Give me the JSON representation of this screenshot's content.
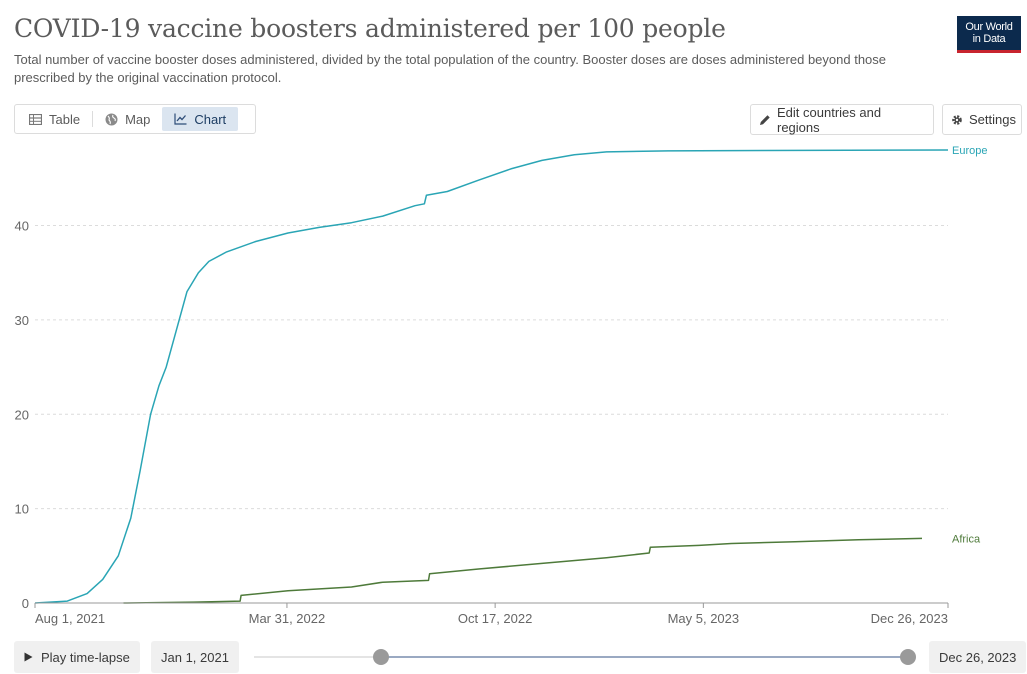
{
  "header": {
    "title": "COVID-19 vaccine boosters administered per 100 people",
    "subtitle": "Total number of vaccine booster doses administered, divided by the total population of the country. Booster doses are doses administered beyond those prescribed by the original vaccination protocol.",
    "logo_line1": "Our World",
    "logo_line2": "in Data"
  },
  "tabs": [
    {
      "label": "Table",
      "icon": "table-icon"
    },
    {
      "label": "Map",
      "icon": "globe-icon"
    },
    {
      "label": "Chart",
      "icon": "line-chart-icon",
      "active": true
    }
  ],
  "toolbar": {
    "edit_label": "Edit countries and regions",
    "settings_label": "Settings"
  },
  "timeline": {
    "play_label": "Play time-lapse",
    "start_label": "Jan 1, 2021",
    "end_label": "Dec 26, 2023"
  },
  "colors": {
    "europe": "#2aa5b5",
    "africa": "#4e7a3a",
    "grid": "#dcdcdc",
    "tick_text": "#666666"
  },
  "chart_data": {
    "type": "line",
    "title": "COVID-19 vaccine boosters administered per 100 people",
    "xlabel": "",
    "ylabel": "",
    "x_range": [
      "2021-08-01",
      "2023-12-26"
    ],
    "ylim": [
      0,
      48
    ],
    "y_ticks": [
      0,
      10,
      20,
      30,
      40
    ],
    "x_ticks": [
      {
        "date": "2021-08-01",
        "label": "Aug 1, 2021"
      },
      {
        "date": "2022-03-31",
        "label": "Mar 31, 2022"
      },
      {
        "date": "2022-10-17",
        "label": "Oct 17, 2022"
      },
      {
        "date": "2023-05-05",
        "label": "May 5, 2023"
      },
      {
        "date": "2023-12-26",
        "label": "Dec 26, 2023"
      }
    ],
    "grid": "horizontal dashed",
    "legend": "labels at line ends (right)",
    "series": [
      {
        "name": "Europe",
        "color": "#2aa5b5",
        "points": [
          [
            "2021-08-01",
            0
          ],
          [
            "2021-09-01",
            0.2
          ],
          [
            "2021-09-20",
            1
          ],
          [
            "2021-10-05",
            2.5
          ],
          [
            "2021-10-20",
            5
          ],
          [
            "2021-11-01",
            9
          ],
          [
            "2021-11-10",
            14
          ],
          [
            "2021-11-20",
            20
          ],
          [
            "2021-11-28",
            23
          ],
          [
            "2021-12-05",
            25
          ],
          [
            "2021-12-15",
            29
          ],
          [
            "2021-12-25",
            33
          ],
          [
            "2022-01-05",
            35
          ],
          [
            "2022-01-15",
            36.2
          ],
          [
            "2022-02-01",
            37.2
          ],
          [
            "2022-03-01",
            38.3
          ],
          [
            "2022-04-01",
            39.2
          ],
          [
            "2022-05-01",
            39.8
          ],
          [
            "2022-06-01",
            40.3
          ],
          [
            "2022-07-01",
            41
          ],
          [
            "2022-08-01",
            42.1
          ],
          [
            "2022-08-10",
            42.3
          ],
          [
            "2022-08-12",
            43.2
          ],
          [
            "2022-09-01",
            43.6
          ],
          [
            "2022-10-01",
            44.8
          ],
          [
            "2022-11-01",
            46
          ],
          [
            "2022-12-01",
            46.9
          ],
          [
            "2023-01-01",
            47.5
          ],
          [
            "2023-02-01",
            47.8
          ],
          [
            "2023-04-01",
            47.9
          ],
          [
            "2023-07-01",
            47.95
          ],
          [
            "2023-12-26",
            48.0
          ]
        ]
      },
      {
        "name": "Africa",
        "color": "#4e7a3a",
        "points": [
          [
            "2021-10-25",
            0
          ],
          [
            "2022-01-01",
            0.1
          ],
          [
            "2022-02-14",
            0.2
          ],
          [
            "2022-02-15",
            0.8
          ],
          [
            "2022-04-01",
            1.3
          ],
          [
            "2022-06-01",
            1.7
          ],
          [
            "2022-07-01",
            2.2
          ],
          [
            "2022-08-14",
            2.4
          ],
          [
            "2022-08-15",
            3.1
          ],
          [
            "2022-10-01",
            3.6
          ],
          [
            "2022-12-01",
            4.2
          ],
          [
            "2023-02-01",
            4.8
          ],
          [
            "2023-03-14",
            5.3
          ],
          [
            "2023-03-15",
            5.9
          ],
          [
            "2023-05-01",
            6.1
          ],
          [
            "2023-06-01",
            6.3
          ],
          [
            "2023-08-01",
            6.5
          ],
          [
            "2023-10-01",
            6.7
          ],
          [
            "2023-12-01",
            6.85
          ]
        ]
      }
    ]
  }
}
